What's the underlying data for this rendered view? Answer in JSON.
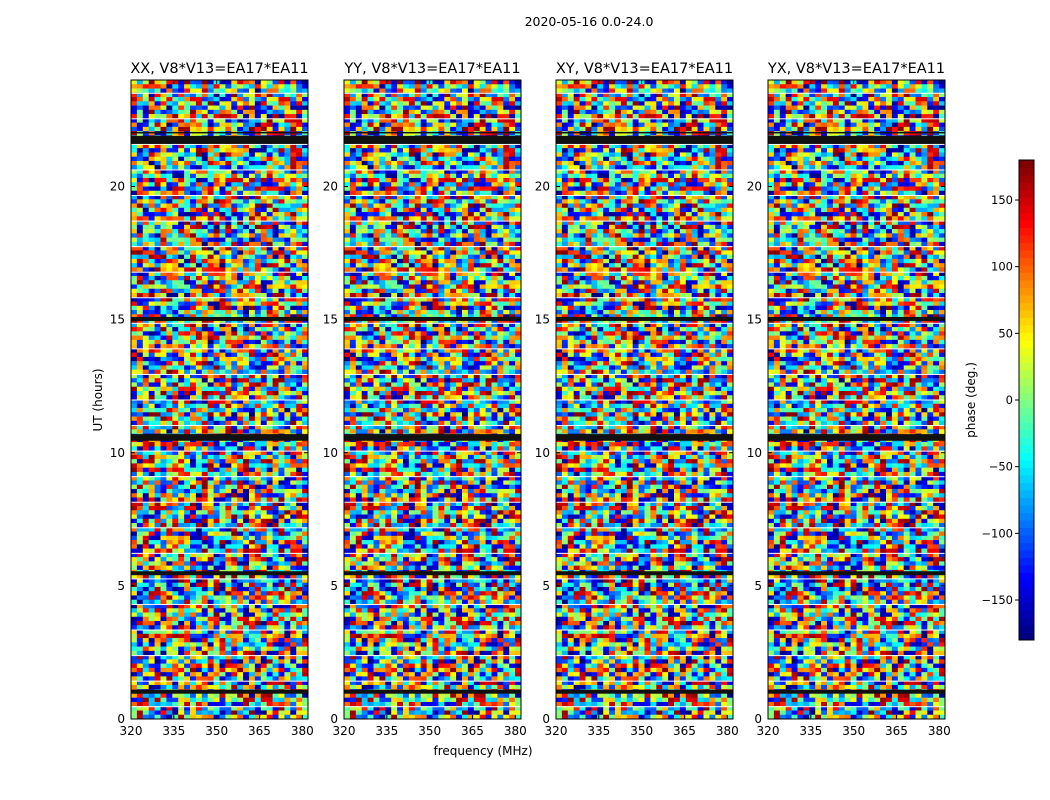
{
  "figure": {
    "suptitle": "2020-05-16 0.0-24.0",
    "xlabel": "frequency (MHz)",
    "ylabel": "UT (hours)",
    "background": "#ffffff"
  },
  "chart_data": {
    "type": "heatmap",
    "title": "2020-05-16 0.0-24.0",
    "xlabel": "frequency (MHz)",
    "ylabel": "UT (hours)",
    "xlim": [
      320,
      382
    ],
    "ylim": [
      0,
      24
    ],
    "xticks": [
      320,
      335,
      350,
      365,
      380
    ],
    "yticks": [
      0,
      5,
      10,
      15,
      20
    ],
    "colormap": "jet",
    "panels": [
      {
        "title": "XX, V8*V13=EA17*EA11",
        "polarization": "XX"
      },
      {
        "title": "YY, V8*V13=EA17*EA11",
        "polarization": "YY"
      },
      {
        "title": "XY, V8*V13=EA17*EA11",
        "polarization": "XY"
      },
      {
        "title": "YX, V8*V13=EA17*EA11",
        "polarization": "YX"
      }
    ],
    "colorbar": {
      "label": "phase (deg.)",
      "range": [
        -180,
        180
      ],
      "ticks": [
        -150,
        -100,
        -50,
        0,
        50,
        100,
        150
      ]
    },
    "flagged_time_bands_hours": [
      [
        0.95,
        1.1
      ],
      [
        5.4,
        5.55
      ],
      [
        10.45,
        10.7
      ],
      [
        14.95,
        15.1
      ],
      [
        21.6,
        21.9
      ],
      [
        22.0,
        22.05
      ]
    ]
  }
}
